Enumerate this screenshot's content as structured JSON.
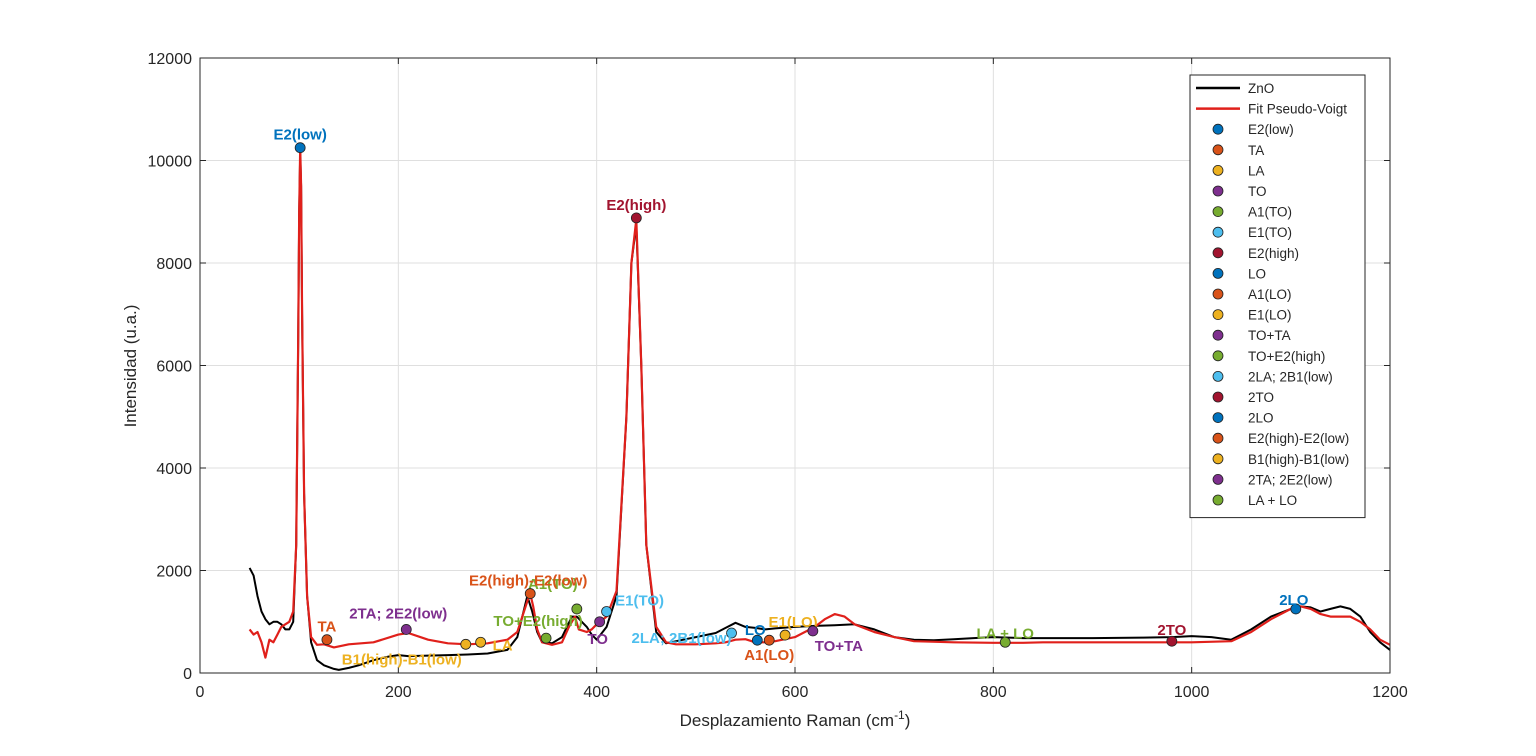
{
  "chart_data": {
    "type": "line",
    "xlabel": "Desplazamiento Raman (cm",
    "xlabel_sup": "-1",
    "xlabel_end": ")",
    "ylabel": "Intensidad (u.a.)",
    "xlim": [
      0,
      1200
    ],
    "ylim": [
      0,
      12000
    ],
    "x_ticks": [
      0,
      200,
      400,
      600,
      800,
      1000,
      1200
    ],
    "y_ticks": [
      0,
      2000,
      4000,
      6000,
      8000,
      10000,
      12000
    ],
    "grid": true,
    "legend_position": "top-right",
    "series": [
      {
        "name": "ZnO",
        "color": "#000000",
        "x": [
          50,
          54,
          58,
          62,
          66,
          70,
          74,
          78,
          82,
          86,
          90,
          94,
          97,
          99,
          100,
          101,
          102,
          103,
          105,
          108,
          112,
          118,
          125,
          135,
          140,
          150,
          160,
          175,
          190,
          200,
          210,
          230,
          250,
          270,
          290,
          310,
          320,
          325,
          330,
          335,
          340,
          345,
          355,
          365,
          375,
          380,
          385,
          390,
          395,
          400,
          410,
          420,
          430,
          435,
          440,
          445,
          450,
          460,
          470,
          480,
          500,
          520,
          530,
          540,
          550,
          560,
          570,
          580,
          600,
          620,
          640,
          660,
          680,
          700,
          720,
          740,
          760,
          780,
          800,
          830,
          850,
          900,
          950,
          980,
          1000,
          1020,
          1040,
          1060,
          1080,
          1100,
          1110,
          1120,
          1130,
          1140,
          1150,
          1160,
          1170,
          1180,
          1190,
          1200
        ],
        "y": [
          2050,
          1900,
          1500,
          1200,
          1050,
          950,
          1000,
          1000,
          950,
          850,
          850,
          1000,
          2500,
          6500,
          9000,
          10150,
          9500,
          7000,
          3500,
          1500,
          600,
          250,
          150,
          80,
          60,
          100,
          150,
          250,
          320,
          350,
          330,
          340,
          350,
          360,
          380,
          450,
          700,
          1100,
          1500,
          1200,
          800,
          600,
          580,
          700,
          1100,
          1100,
          1000,
          900,
          750,
          650,
          900,
          1500,
          5000,
          8000,
          8750,
          6000,
          2500,
          800,
          580,
          620,
          700,
          780,
          880,
          980,
          900,
          880,
          850,
          870,
          900,
          920,
          930,
          950,
          850,
          700,
          650,
          640,
          660,
          680,
          700,
          680,
          680,
          680,
          690,
          700,
          720,
          700,
          650,
          850,
          1100,
          1250,
          1300,
          1280,
          1200,
          1250,
          1300,
          1250,
          1100,
          800,
          600,
          450
        ]
      },
      {
        "name": "Fit Pseudo-Voigt",
        "color": "#e0201b",
        "x": [
          50,
          54,
          58,
          62,
          66,
          70,
          74,
          78,
          82,
          86,
          90,
          94,
          97,
          99,
          100,
          101,
          102,
          103,
          105,
          108,
          112,
          118,
          125,
          135,
          150,
          175,
          200,
          210,
          230,
          250,
          270,
          290,
          310,
          320,
          325,
          330,
          333,
          336,
          340,
          345,
          355,
          365,
          372,
          378,
          382,
          390,
          395,
          400,
          410,
          420,
          430,
          435,
          440,
          445,
          450,
          460,
          470,
          480,
          500,
          520,
          530,
          540,
          550,
          560,
          570,
          580,
          600,
          620,
          630,
          640,
          650,
          660,
          680,
          700,
          720,
          760,
          800,
          830,
          850,
          900,
          950,
          980,
          1000,
          1040,
          1060,
          1080,
          1100,
          1110,
          1120,
          1130,
          1140,
          1150,
          1160,
          1170,
          1180,
          1190,
          1200
        ],
        "y": [
          850,
          750,
          800,
          600,
          300,
          650,
          600,
          750,
          900,
          950,
          1000,
          1200,
          2500,
          6500,
          9000,
          10250,
          9500,
          7000,
          3500,
          1500,
          700,
          550,
          560,
          500,
          560,
          600,
          750,
          780,
          650,
          580,
          560,
          580,
          650,
          800,
          1100,
          1400,
          1550,
          1300,
          850,
          600,
          550,
          600,
          900,
          1100,
          850,
          800,
          850,
          950,
          1100,
          1600,
          5000,
          8000,
          8850,
          6000,
          2500,
          900,
          600,
          560,
          560,
          580,
          600,
          650,
          660,
          600,
          600,
          620,
          700,
          900,
          1050,
          1150,
          1100,
          950,
          800,
          700,
          620,
          600,
          590,
          590,
          600,
          600,
          600,
          600,
          600,
          620,
          800,
          1050,
          1250,
          1300,
          1250,
          1150,
          1100,
          1100,
          1100,
          1000,
          850,
          650,
          550
        ]
      }
    ],
    "peaks": [
      {
        "label": "E2(low)",
        "x": 101,
        "y": 10250,
        "color": "#0072bd"
      },
      {
        "label": "TA",
        "x": 128,
        "y": 650,
        "color": "#d95319"
      },
      {
        "label": "LA",
        "x": 283,
        "y": 600,
        "color": "#edb120"
      },
      {
        "label": "TO",
        "x": 403,
        "y": 1000,
        "color": "#7e2f8e"
      },
      {
        "label": "A1(TO)",
        "x": 380,
        "y": 1250,
        "color": "#77ac30"
      },
      {
        "label": "E1(TO)",
        "x": 410,
        "y": 1200,
        "color": "#4dbeee"
      },
      {
        "label": "E2(high)",
        "x": 440,
        "y": 8880,
        "color": "#a2142f"
      },
      {
        "label": "LO",
        "x": 562,
        "y": 640,
        "color": "#0072bd"
      },
      {
        "label": "A1(LO)",
        "x": 574,
        "y": 640,
        "color": "#d95319"
      },
      {
        "label": "E1(LO)",
        "x": 590,
        "y": 740,
        "color": "#edb120"
      },
      {
        "label": "TO+TA",
        "x": 618,
        "y": 820,
        "color": "#7e2f8e"
      },
      {
        "label": "TO+E2(high)",
        "x": 349,
        "y": 680,
        "color": "#77ac30"
      },
      {
        "label": "2LA; 2B1(low)",
        "x": 536,
        "y": 780,
        "color": "#4dbeee"
      },
      {
        "label": "2TO",
        "x": 980,
        "y": 620,
        "color": "#a2142f"
      },
      {
        "label": "2LO",
        "x": 1105,
        "y": 1250,
        "color": "#0072bd"
      },
      {
        "label": "E2(high)-E2(low)",
        "x": 333,
        "y": 1550,
        "color": "#d95319"
      },
      {
        "label": "B1(high)-B1(low)",
        "x": 268,
        "y": 560,
        "color": "#edb120"
      },
      {
        "label": "2TA; 2E2(low)",
        "x": 208,
        "y": 850,
        "color": "#7e2f8e"
      },
      {
        "label": "LA + LO",
        "x": 812,
        "y": 600,
        "color": "#77ac30"
      }
    ]
  }
}
